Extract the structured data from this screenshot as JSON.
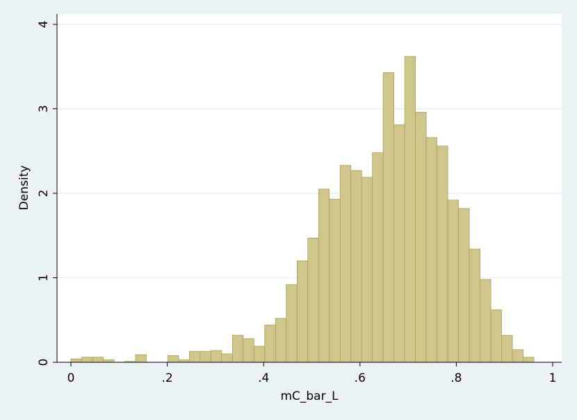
{
  "chart_data": {
    "type": "histogram",
    "x_label": "mC_bar_L",
    "y_label": "Density",
    "bins": [
      0,
      0.0224,
      0.0447,
      0.0671,
      0.0894,
      0.1118,
      0.1341,
      0.1565,
      0.1788,
      0.2012,
      0.2235,
      0.2459,
      0.2682,
      0.2906,
      0.3129,
      0.3353,
      0.3576,
      0.38,
      0.4023,
      0.4247,
      0.447,
      0.4694,
      0.4917,
      0.5141,
      0.5364,
      0.5588,
      0.5811,
      0.6035,
      0.6258,
      0.6482,
      0.6705,
      0.6929,
      0.7152,
      0.7376,
      0.7599,
      0.7823,
      0.8046,
      0.827,
      0.8493,
      0.8717,
      0.894,
      0.9164,
      0.9387,
      0.9611
    ],
    "values": [
      0.04,
      0.06,
      0.06,
      0.03,
      0,
      0.01,
      0.09,
      0,
      0,
      0.08,
      0.03,
      0.13,
      0.13,
      0.14,
      0.1,
      0.32,
      0.28,
      0.19,
      0.44,
      0.52,
      0.92,
      1.2,
      1.47,
      2.05,
      1.93,
      2.33,
      2.27,
      2.19,
      2.48,
      3.43,
      2.81,
      3.62,
      2.96,
      2.66,
      2.56,
      1.92,
      1.82,
      1.34,
      0.98,
      0.62,
      0.32,
      0.15,
      0.06
    ],
    "color": "#cfc68c",
    "xlim": [
      0,
      1
    ],
    "ylim": [
      0,
      4
    ],
    "xticks": [
      0,
      {
        "value": 0.2,
        "label": ".2"
      },
      {
        "value": 0.4,
        "label": ".4"
      },
      {
        "value": 0.6,
        "label": ".6"
      },
      {
        "value": 0.8,
        "label": ".8"
      },
      1
    ],
    "yticks": [
      0,
      1,
      2,
      3,
      4
    ],
    "grid": true
  }
}
